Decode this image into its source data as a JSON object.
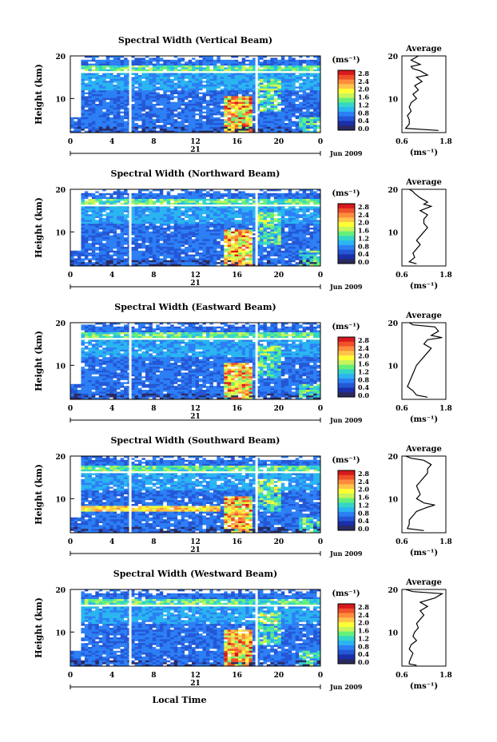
{
  "panels": [
    {
      "title": "Spectral Width (Vertical Beam)"
    },
    {
      "title": "Spectral Width (Northward Beam)"
    },
    {
      "title": "Spectral Width (Eastward Beam)"
    },
    {
      "title": "Spectral Width (Southward Beam)"
    },
    {
      "title": "Spectral Width (Westward Beam)"
    }
  ],
  "colorbar": {
    "unit_label": "(ms⁻¹)",
    "ticks": [
      "2.8",
      "2.4",
      "2.0",
      "1.6",
      "1.2",
      "0.8",
      "0.4",
      "0.0"
    ],
    "colors": [
      "#d7191c",
      "#f0502a",
      "#fd8d3c",
      "#ffc44a",
      "#ffff33",
      "#c7f55b",
      "#66f07a",
      "#33d6c8",
      "#2ab5f0",
      "#2c7ff5",
      "#2457d6",
      "#1b2fa8",
      "#2a2a60"
    ]
  },
  "x_axis": {
    "ticks": [
      "0",
      "4",
      "8",
      "12",
      "16",
      "20",
      "0"
    ],
    "date_label": "21",
    "month_label": "Jun 2009",
    "xlabel": "Local Time"
  },
  "y_axis": {
    "label": "Height (km)",
    "ticks": [
      "20",
      "10"
    ]
  },
  "average": {
    "title": "Average",
    "unit_label": "(ms⁻¹)",
    "x_ticks": [
      "0.6",
      "1.8"
    ],
    "y_ticks": [
      "20",
      "10"
    ]
  },
  "chart_data": [
    {
      "type": "heatmap",
      "title": "Spectral Width (Vertical Beam)",
      "xlabel": "",
      "ylabel": "Height (km)",
      "xlim": [
        0,
        24
      ],
      "ylim": [
        2,
        20
      ],
      "zlim": [
        0.0,
        3.0
      ],
      "average_profile": {
        "x": [
          1.05,
          0.85,
          1.1,
          0.85,
          0.9,
          1.1,
          1.3,
          1.0,
          1.15,
          0.95,
          1.05,
          0.9,
          1.0,
          0.85,
          0.8,
          0.85,
          0.75,
          0.8,
          0.8,
          0.7,
          1.6
        ],
        "y": [
          20,
          19,
          18,
          17.5,
          17,
          16.5,
          15.5,
          15,
          14,
          13,
          12,
          11,
          10,
          9,
          8,
          7,
          6,
          5,
          4,
          3,
          2.5
        ],
        "xlim": [
          0.6,
          1.8
        ]
      }
    },
    {
      "type": "heatmap",
      "title": "Spectral Width (Northward Beam)",
      "xlabel": "",
      "ylabel": "Height (km)",
      "xlim": [
        0,
        24
      ],
      "ylim": [
        2,
        20
      ],
      "zlim": [
        0.0,
        3.0
      ],
      "average_profile": {
        "x": [
          0.8,
          0.9,
          0.95,
          1.1,
          1.3,
          1.2,
          1.4,
          1.1,
          1.3,
          1.2,
          1.2,
          1.3,
          1.2,
          1.1,
          1.0,
          1.1,
          1.0,
          0.9,
          0.95,
          0.8,
          1.0
        ],
        "y": [
          20,
          19.5,
          19,
          18,
          17,
          16.5,
          16,
          15,
          14,
          13,
          12,
          11,
          10,
          9,
          8,
          7,
          6,
          5,
          4,
          3,
          2.5
        ],
        "xlim": [
          0.6,
          1.8
        ]
      }
    },
    {
      "type": "heatmap",
      "title": "Spectral Width (Eastward Beam)",
      "xlabel": "",
      "ylabel": "Height (km)",
      "xlim": [
        0,
        24
      ],
      "ylim": [
        2,
        20
      ],
      "zlim": [
        0.0,
        3.0
      ],
      "average_profile": {
        "x": [
          0.8,
          0.9,
          1.5,
          1.6,
          1.4,
          1.7,
          1.3,
          1.2,
          1.4,
          1.3,
          1.2,
          1.1,
          1.0,
          0.95,
          0.9,
          0.85,
          0.8,
          0.75,
          0.9,
          1.0,
          1.3
        ],
        "y": [
          20,
          19.5,
          19,
          18,
          17,
          16.5,
          16,
          15,
          14,
          13,
          12,
          11,
          10,
          9,
          8,
          7,
          6,
          5,
          4,
          3,
          2.5
        ],
        "xlim": [
          0.6,
          1.8
        ]
      }
    },
    {
      "type": "heatmap",
      "title": "Spectral Width (Southward Beam)",
      "xlabel": "",
      "ylabel": "Height (km)",
      "xlim": [
        0,
        24
      ],
      "ylim": [
        2,
        20
      ],
      "zlim": [
        0.0,
        3.0
      ],
      "average_profile": {
        "x": [
          0.7,
          0.85,
          1.2,
          1.4,
          1.3,
          1.3,
          1.2,
          1.1,
          1.0,
          1.05,
          1.1,
          1.0,
          1.2,
          1.5,
          1.3,
          1.0,
          0.9,
          0.8,
          0.8,
          0.75,
          1.2
        ],
        "y": [
          20,
          19.5,
          19,
          18,
          17,
          16,
          15,
          14,
          13,
          12,
          11,
          10,
          9,
          8.5,
          8,
          7,
          6,
          5,
          4,
          3,
          2.5
        ],
        "xlim": [
          0.6,
          1.8
        ]
      }
    },
    {
      "type": "heatmap",
      "title": "Spectral Width (Westward Beam)",
      "xlabel": "Local Time",
      "ylabel": "Height (km)",
      "xlim": [
        0,
        24
      ],
      "ylim": [
        2,
        20
      ],
      "zlim": [
        0.0,
        3.0
      ],
      "average_profile": {
        "x": [
          0.7,
          0.9,
          1.7,
          1.5,
          1.1,
          1.3,
          1.1,
          1.2,
          1.1,
          1.0,
          1.05,
          0.95,
          0.9,
          1.0,
          0.85,
          0.8,
          0.9,
          0.85,
          0.8,
          0.8,
          1.0
        ],
        "y": [
          20,
          19.5,
          19,
          18,
          17,
          16,
          15,
          14,
          13,
          12,
          11,
          10,
          9,
          8,
          7,
          6,
          5,
          4,
          3,
          2.5,
          2.2
        ],
        "xlim": [
          0.6,
          1.8
        ]
      }
    }
  ]
}
